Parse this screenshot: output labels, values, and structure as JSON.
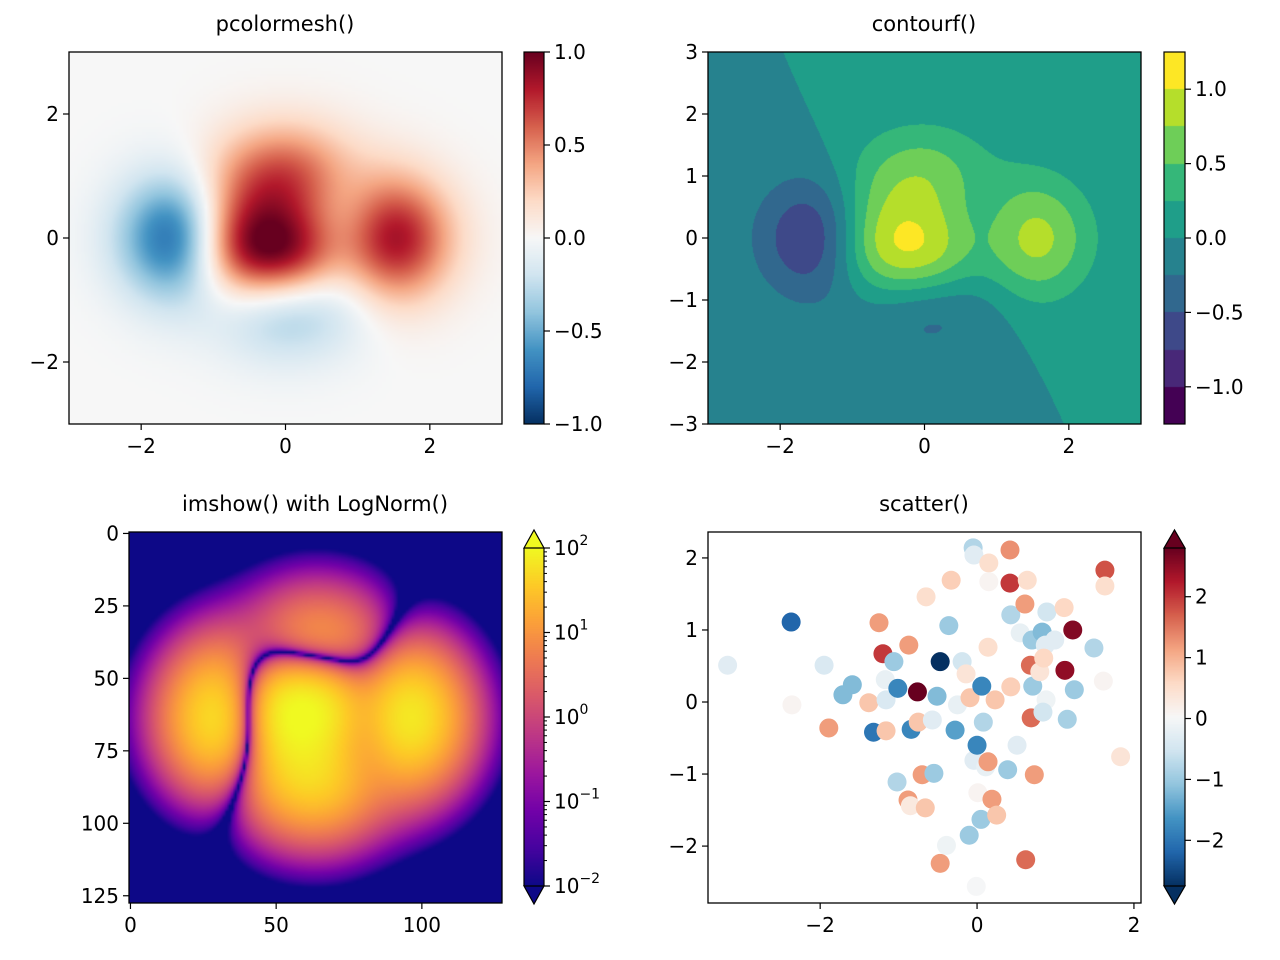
{
  "chart_data": [
    {
      "type": "heatmap",
      "title": "pcolormesh()",
      "cmap": "RdBu_r",
      "xlim": [
        -3,
        3
      ],
      "ylim": [
        -3,
        3
      ],
      "xticks": [
        {
          "value": -2,
          "label": "−2"
        },
        {
          "value": 0,
          "label": "0"
        },
        {
          "value": 2,
          "label": "2"
        }
      ],
      "yticks": [
        {
          "value": -2,
          "label": "−2"
        },
        {
          "value": 0,
          "label": "0"
        },
        {
          "value": 2,
          "label": "2"
        }
      ],
      "colorbar": {
        "scale": "linear",
        "range": [
          -1,
          1
        ],
        "extend": "neither",
        "ticks": [
          {
            "value": -1,
            "label": "−1.0"
          },
          {
            "value": -0.5,
            "label": "−0.5"
          },
          {
            "value": 0,
            "label": "0.0"
          },
          {
            "value": 0.5,
            "label": "0.5"
          },
          {
            "value": 1,
            "label": "1.0"
          }
        ]
      }
    },
    {
      "type": "contour",
      "title": "contourf()",
      "cmap": "viridis",
      "xlim": [
        -3,
        3
      ],
      "ylim": [
        -3,
        3
      ],
      "levels": [
        -1.25,
        -1.0,
        -0.75,
        -0.5,
        -0.25,
        0.0,
        0.25,
        0.5,
        0.75,
        1.0,
        1.25
      ],
      "xticks": [
        {
          "value": -2,
          "label": "−2"
        },
        {
          "value": 0,
          "label": "0"
        },
        {
          "value": 2,
          "label": "2"
        }
      ],
      "yticks": [
        {
          "value": -3,
          "label": "−3"
        },
        {
          "value": -2,
          "label": "−2"
        },
        {
          "value": -1,
          "label": "−1"
        },
        {
          "value": 0,
          "label": "0"
        },
        {
          "value": 1,
          "label": "1"
        },
        {
          "value": 2,
          "label": "2"
        },
        {
          "value": 3,
          "label": "3"
        }
      ],
      "colorbar": {
        "scale": "linear",
        "range": [
          -1.25,
          1.25
        ],
        "extend": "neither",
        "ticks": [
          {
            "value": -1,
            "label": "−1.0"
          },
          {
            "value": -0.5,
            "label": "−0.5"
          },
          {
            "value": 0,
            "label": "0.0"
          },
          {
            "value": 0.5,
            "label": "0.5"
          },
          {
            "value": 1,
            "label": "1.0"
          }
        ]
      }
    },
    {
      "type": "heatmap",
      "title": "imshow() with LogNorm()",
      "cmap": "plasma",
      "norm": "log",
      "xlim": [
        -0.5,
        127.5
      ],
      "ylim": [
        127.5,
        -0.5
      ],
      "xticks": [
        {
          "value": 0,
          "label": "0"
        },
        {
          "value": 50,
          "label": "50"
        },
        {
          "value": 100,
          "label": "100"
        }
      ],
      "yticks": [
        {
          "value": 0,
          "label": "0"
        },
        {
          "value": 25,
          "label": "25"
        },
        {
          "value": 50,
          "label": "50"
        },
        {
          "value": 75,
          "label": "75"
        },
        {
          "value": 100,
          "label": "100"
        },
        {
          "value": 125,
          "label": "125"
        }
      ],
      "colorbar": {
        "scale": "log",
        "range": [
          0.01,
          100
        ],
        "extend": "both",
        "ticks": [
          {
            "value": 0.01,
            "base": "10",
            "exponent": "−2"
          },
          {
            "value": 0.1,
            "base": "10",
            "exponent": "−1"
          },
          {
            "value": 1,
            "base": "10",
            "exponent": "0"
          },
          {
            "value": 10,
            "base": "10",
            "exponent": "1"
          },
          {
            "value": 100,
            "base": "10",
            "exponent": "2"
          }
        ]
      }
    },
    {
      "type": "scatter",
      "title": "scatter()",
      "cmap": "RdBu_r",
      "xlim": [
        -3.43,
        2.09
      ],
      "ylim": [
        -2.79,
        2.36
      ],
      "xticks": [
        {
          "value": -2,
          "label": "−2"
        },
        {
          "value": 0,
          "label": "0"
        },
        {
          "value": 2,
          "label": "2"
        }
      ],
      "yticks": [
        {
          "value": -2,
          "label": "−2"
        },
        {
          "value": -1,
          "label": "−1"
        },
        {
          "value": 0,
          "label": "0"
        },
        {
          "value": 1,
          "label": "1"
        },
        {
          "value": 2,
          "label": "2"
        }
      ],
      "colorbar": {
        "scale": "linear",
        "range": [
          -2.75,
          2.8
        ],
        "extend": "both",
        "ticks": [
          {
            "value": -2,
            "label": "−2"
          },
          {
            "value": -1,
            "label": "−1"
          },
          {
            "value": 0,
            "label": "0"
          },
          {
            "value": 1,
            "label": "1"
          },
          {
            "value": 2,
            "label": "2"
          }
        ]
      },
      "points_xyc": [
        [
          -3.18,
          0.51,
          -0.3
        ],
        [
          -2.37,
          1.11,
          -2.2
        ],
        [
          -2.36,
          -0.04,
          0.1
        ],
        [
          -1.95,
          0.51,
          -0.4
        ],
        [
          -1.89,
          -0.36,
          1.2
        ],
        [
          -1.71,
          0.1,
          -1.2
        ],
        [
          -1.59,
          0.24,
          -1.2
        ],
        [
          -1.38,
          -0.01,
          0.8
        ],
        [
          -1.32,
          -0.42,
          -2.0
        ],
        [
          -1.25,
          1.1,
          1.2
        ],
        [
          -1.2,
          0.67,
          2.0
        ],
        [
          -1.16,
          -0.4,
          0.8
        ],
        [
          -1.16,
          0.03,
          -0.4
        ],
        [
          -1.17,
          0.31,
          -0.2
        ],
        [
          -1.06,
          0.56,
          -1.0
        ],
        [
          -1.02,
          -1.11,
          -0.8
        ],
        [
          -1.01,
          0.19,
          -1.8
        ],
        [
          -0.87,
          0.79,
          1.2
        ],
        [
          -0.88,
          -1.36,
          1.2
        ],
        [
          -0.84,
          -0.38,
          -1.8
        ],
        [
          -0.85,
          -1.44,
          0.3
        ],
        [
          -0.76,
          0.14,
          2.8
        ],
        [
          -0.75,
          -0.28,
          0.8
        ],
        [
          -0.7,
          -1.01,
          1.2
        ],
        [
          -0.66,
          -1.47,
          0.8
        ],
        [
          -0.65,
          1.46,
          0.5
        ],
        [
          -0.57,
          -0.25,
          -0.3
        ],
        [
          -0.55,
          -0.99,
          -1.0
        ],
        [
          -0.51,
          0.08,
          -1.2
        ],
        [
          -0.47,
          -2.24,
          1.2
        ],
        [
          -0.47,
          0.56,
          -2.8
        ],
        [
          -0.39,
          -1.99,
          -0.1
        ],
        [
          -0.36,
          1.06,
          -1.0
        ],
        [
          -0.33,
          1.69,
          0.7
        ],
        [
          -0.28,
          -0.39,
          -1.5
        ],
        [
          -0.25,
          -0.04,
          -0.2
        ],
        [
          -0.19,
          0.56,
          -0.5
        ],
        [
          -0.14,
          0.39,
          0.4
        ],
        [
          -0.1,
          -1.85,
          -1.0
        ],
        [
          -0.09,
          0.06,
          0.8
        ],
        [
          -0.05,
          2.14,
          -0.8
        ],
        [
          -0.04,
          2.04,
          -0.3
        ],
        [
          -0.04,
          -0.81,
          -0.3
        ],
        [
          -0.01,
          -2.56,
          0.0
        ],
        [
          0.01,
          -1.26,
          0.1
        ],
        [
          0.0,
          -0.6,
          -1.8
        ],
        [
          0.05,
          -1.63,
          -1.0
        ],
        [
          0.06,
          0.22,
          -1.8
        ],
        [
          0.08,
          -0.28,
          -0.8
        ],
        [
          0.11,
          -0.9,
          -0.2
        ],
        [
          0.14,
          -0.83,
          1.2
        ],
        [
          0.14,
          0.76,
          0.5
        ],
        [
          0.15,
          1.93,
          0.5
        ],
        [
          0.15,
          1.67,
          0.1
        ],
        [
          0.19,
          -1.35,
          1.2
        ],
        [
          0.25,
          -1.57,
          0.8
        ],
        [
          0.23,
          0.03,
          0.8
        ],
        [
          0.39,
          -0.94,
          -1.0
        ],
        [
          0.42,
          2.11,
          1.3
        ],
        [
          0.42,
          1.65,
          2.0
        ],
        [
          0.43,
          1.21,
          -0.8
        ],
        [
          0.43,
          0.21,
          0.7
        ],
        [
          0.51,
          -0.6,
          -0.3
        ],
        [
          0.55,
          0.96,
          -0.2
        ],
        [
          0.61,
          1.36,
          1.2
        ],
        [
          0.64,
          1.69,
          0.5
        ],
        [
          0.68,
          0.51,
          1.6
        ],
        [
          0.69,
          -0.22,
          1.6
        ],
        [
          0.7,
          0.86,
          -1.0
        ],
        [
          0.71,
          0.22,
          -1.0
        ],
        [
          0.73,
          -1.01,
          1.2
        ],
        [
          0.62,
          -2.19,
          1.6
        ],
        [
          0.8,
          0.42,
          0.4
        ],
        [
          0.83,
          0.97,
          -1.2
        ],
        [
          0.87,
          0.79,
          -0.3
        ],
        [
          0.88,
          0.03,
          -0.1
        ],
        [
          0.89,
          1.25,
          -0.5
        ],
        [
          0.99,
          0.86,
          -0.3
        ],
        [
          0.84,
          -0.14,
          -0.5
        ],
        [
          1.11,
          1.31,
          0.6
        ],
        [
          1.12,
          0.44,
          2.5
        ],
        [
          1.15,
          -0.24,
          -0.9
        ],
        [
          1.22,
          1.0,
          2.6
        ],
        [
          1.24,
          0.17,
          -1.0
        ],
        [
          1.49,
          0.75,
          -0.8
        ],
        [
          1.61,
          0.29,
          0.1
        ],
        [
          1.63,
          1.83,
          1.8
        ],
        [
          1.63,
          1.61,
          0.5
        ],
        [
          1.83,
          -0.76,
          0.4
        ],
        [
          0.85,
          0.61,
          0.6
        ]
      ]
    }
  ]
}
